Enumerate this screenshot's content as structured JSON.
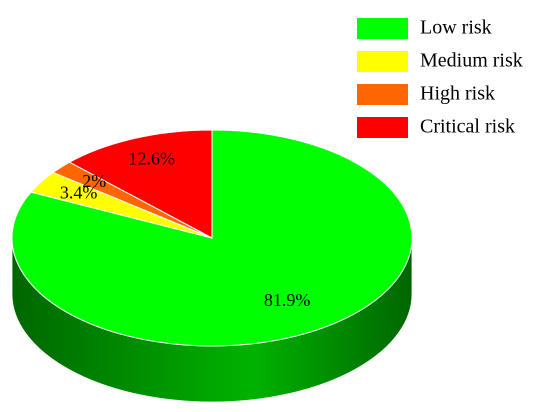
{
  "chart_data": {
    "type": "pie",
    "categories": [
      "Low risk",
      "Medium risk",
      "High risk",
      "Critical risk"
    ],
    "values": [
      81.9,
      3.4,
      2,
      12.6
    ],
    "value_labels": [
      "81.9%",
      "3.4%",
      "2%",
      "12.6%"
    ],
    "colors": [
      "#00ff00",
      "#ffff00",
      "#ff6600",
      "#ff0000"
    ],
    "legend": "top-right",
    "three_d": true
  }
}
